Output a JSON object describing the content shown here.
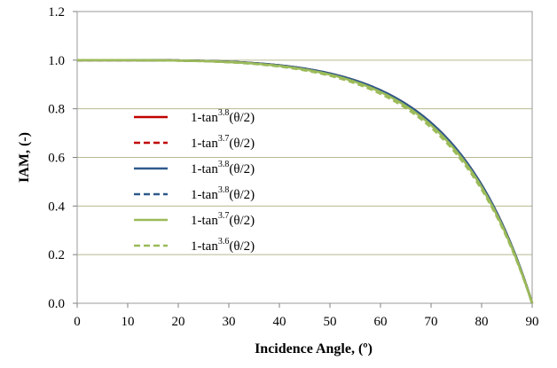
{
  "chart_data": {
    "type": "line",
    "title": "",
    "xlabel": "Incidence Angle, (º)",
    "ylabel": "IAM, (-)",
    "xlim": [
      0,
      90
    ],
    "ylim": [
      0,
      1.2
    ],
    "x_ticks": [
      0,
      10,
      20,
      30,
      40,
      50,
      60,
      70,
      80,
      90
    ],
    "x_tick_labels": [
      "0",
      "10",
      "20",
      "30",
      "40",
      "50",
      "60",
      "70",
      "80",
      "90"
    ],
    "y_ticks": [
      0,
      0.2,
      0.4,
      0.6,
      0.8,
      1.0,
      1.2
    ],
    "y_tick_labels": [
      "0.0",
      "0.2",
      "0.4",
      "0.6",
      "0.8",
      "1.0",
      "1.2"
    ],
    "grid": "horizontal",
    "legend_position": "left-center",
    "series": [
      {
        "label_base": "1-tan",
        "label_exp": "3.8",
        "label_arg": "(θ/2)",
        "exponent": 3.8,
        "color": "#c00000",
        "dash": "solid"
      },
      {
        "label_base": "1-tan",
        "label_exp": "3.7",
        "label_arg": "(θ/2)",
        "exponent": 3.7,
        "color": "#c00000",
        "dash": "dashed"
      },
      {
        "label_base": "1-tan",
        "label_exp": "3.8",
        "label_arg": "(θ/2)",
        "exponent": 3.8,
        "color": "#2e5a8a",
        "dash": "solid"
      },
      {
        "label_base": "1-tan",
        "label_exp": "3.8",
        "label_arg": "(θ/2)",
        "exponent": 3.8,
        "color": "#2e5a8a",
        "dash": "dashed"
      },
      {
        "label_base": "1-tan",
        "label_exp": "3.7",
        "label_arg": "(θ/2)",
        "exponent": 3.7,
        "color": "#9bbb59",
        "dash": "solid"
      },
      {
        "label_base": "1-tan",
        "label_exp": "3.6",
        "label_arg": "(θ/2)",
        "exponent": 3.6,
        "color": "#9bbb59",
        "dash": "dashed"
      }
    ]
  }
}
